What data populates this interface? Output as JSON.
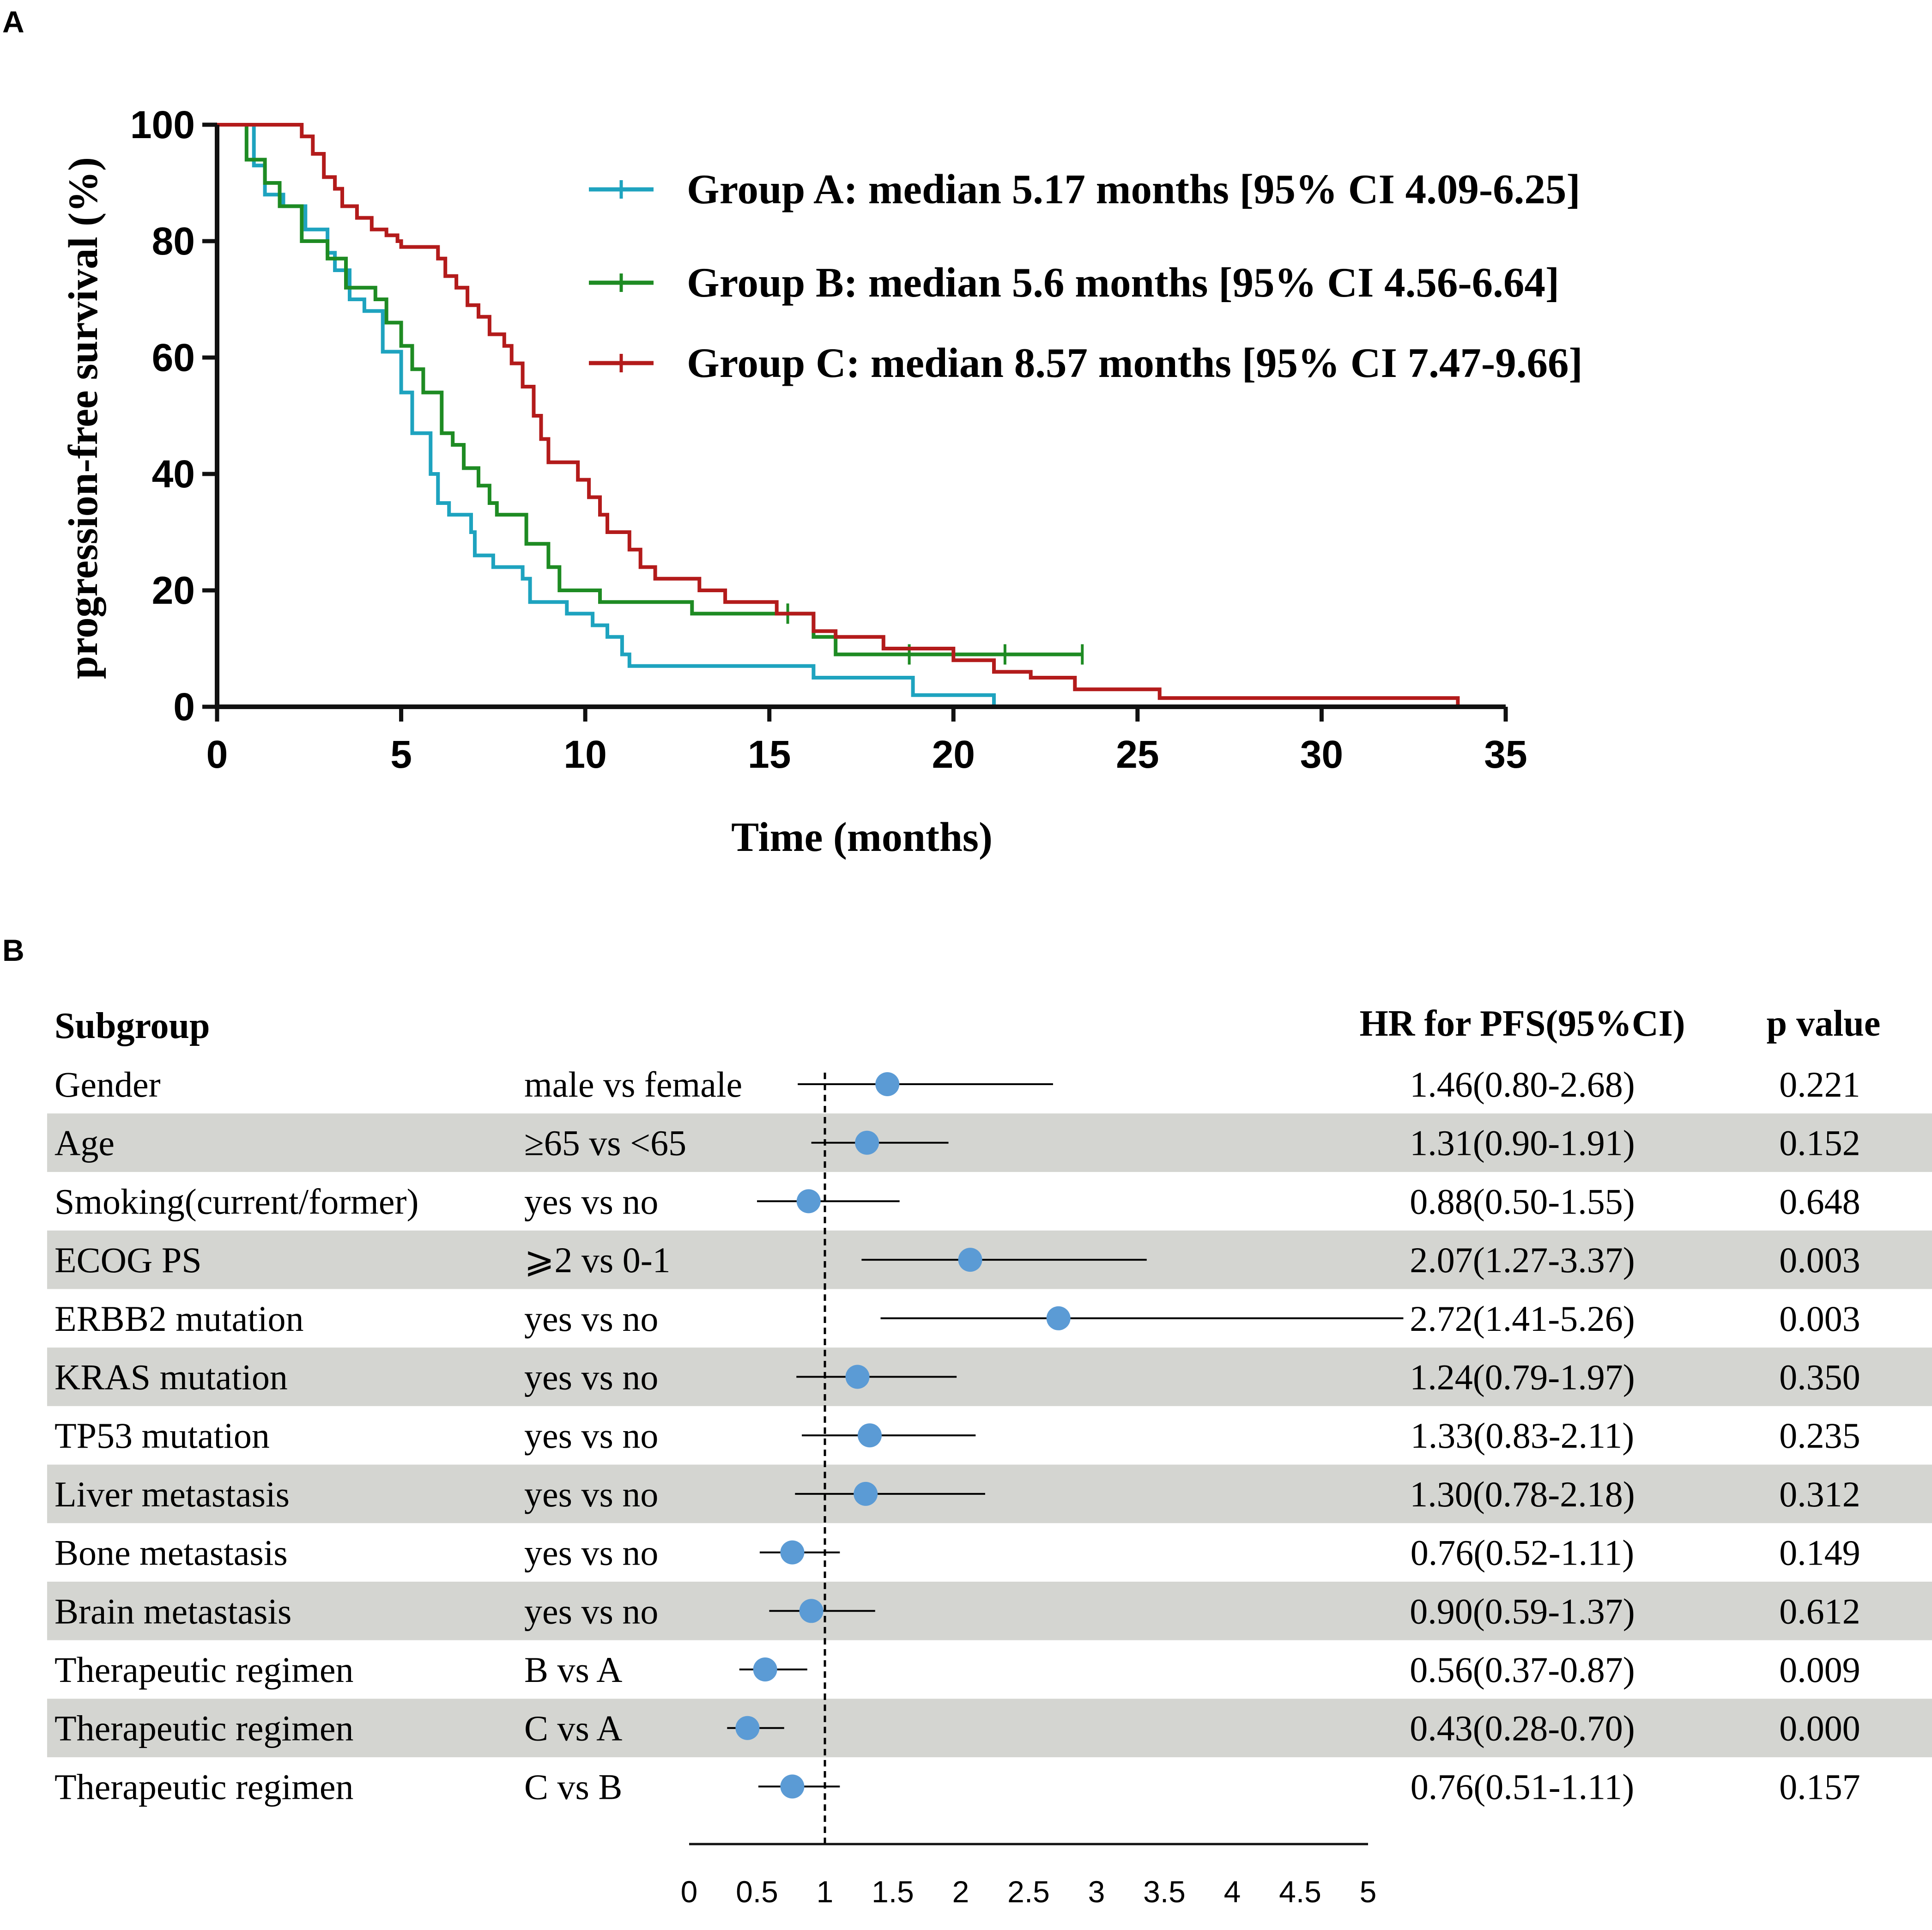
{
  "colors": {
    "group_a": "#1ea3bf",
    "group_b": "#1e8b23",
    "group_c": "#b31b1b",
    "axis": "#111111",
    "marker": "#5b9bd5",
    "row_shade": "#d4d5d1",
    "background": "#ffffff"
  },
  "panel_a": {
    "label": "A",
    "ylabel": "progression-free survival (%)",
    "xlabel": "Time (months)",
    "x_ticks": [
      "0",
      "5",
      "10",
      "15",
      "20",
      "25",
      "30",
      "35"
    ],
    "y_ticks": [
      "0",
      "20",
      "40",
      "60",
      "80",
      "100"
    ],
    "legend": [
      {
        "text": "Group A: median 5.17 months [95% CI 4.09-6.25]"
      },
      {
        "text": "Group B: median 5.6 months [95% CI 4.56-6.64]"
      },
      {
        "text": "Group C: median 8.57 months [95% CI 7.47-9.66]"
      }
    ]
  },
  "panel_b": {
    "label": "B",
    "headers": {
      "subgroup": "Subgroup",
      "hr": "HR for PFS(95%CI)",
      "p": "p value"
    },
    "x_ticks": [
      "0",
      "0.5",
      "1",
      "1.5",
      "2",
      "2.5",
      "3",
      "3.5",
      "4",
      "4.5",
      "5"
    ],
    "rows": [
      {
        "subgroup": "Gender",
        "comparison": "male vs female",
        "hr_text": "1.46(0.80-2.68)",
        "p": "0.221"
      },
      {
        "subgroup": "Age",
        "comparison": "≥65 vs <65",
        "hr_text": "1.31(0.90-1.91)",
        "p": "0.152"
      },
      {
        "subgroup": "Smoking(current/former)",
        "comparison": "yes vs no",
        "hr_text": "0.88(0.50-1.55)",
        "p": "0.648"
      },
      {
        "subgroup": "ECOG PS",
        "comparison": "⩾2 vs 0-1",
        "hr_text": "2.07(1.27-3.37)",
        "p": "0.003"
      },
      {
        "subgroup": "ERBB2 mutation",
        "comparison": "yes vs no",
        "hr_text": "2.72(1.41-5.26)",
        "p": "0.003"
      },
      {
        "subgroup": "KRAS mutation",
        "comparison": "yes vs no",
        "hr_text": "1.24(0.79-1.97)",
        "p": "0.350"
      },
      {
        "subgroup": "TP53 mutation",
        "comparison": "yes vs no",
        "hr_text": "1.33(0.83-2.11)",
        "p": "0.235"
      },
      {
        "subgroup": "Liver metastasis",
        "comparison": "yes vs no",
        "hr_text": "1.30(0.78-2.18)",
        "p": "0.312"
      },
      {
        "subgroup": "Bone metastasis",
        "comparison": "yes vs no",
        "hr_text": "0.76(0.52-1.11)",
        "p": "0.149"
      },
      {
        "subgroup": "Brain metastasis",
        "comparison": "yes vs no",
        "hr_text": "0.90(0.59-1.37)",
        "p": "0.612"
      },
      {
        "subgroup": "Therapeutic regimen",
        "comparison": "B vs A",
        "hr_text": "0.56(0.37-0.87)",
        "p": "0.009"
      },
      {
        "subgroup": "Therapeutic regimen",
        "comparison": "C vs A",
        "hr_text": "0.43(0.28-0.70)",
        "p": "0.000"
      },
      {
        "subgroup": "Therapeutic regimen",
        "comparison": "C vs B",
        "hr_text": "0.76(0.51-1.11)",
        "p": "0.157"
      }
    ]
  },
  "chart_data": [
    {
      "type": "line",
      "title": "",
      "xlabel": "Time (months)",
      "ylabel": "progression-free survival (%)",
      "xlim": [
        0,
        35
      ],
      "ylim": [
        0,
        100
      ],
      "step": true,
      "series": [
        {
          "name": "Group A",
          "points": [
            [
              0,
              100
            ],
            [
              1,
              100
            ],
            [
              1,
              93
            ],
            [
              1.3,
              93
            ],
            [
              1.3,
              88
            ],
            [
              1.8,
              88
            ],
            [
              1.8,
              86
            ],
            [
              2.4,
              86
            ],
            [
              2.4,
              82
            ],
            [
              3,
              82
            ],
            [
              3,
              78
            ],
            [
              3.2,
              78
            ],
            [
              3.2,
              75
            ],
            [
              3.6,
              75
            ],
            [
              3.6,
              70
            ],
            [
              4,
              70
            ],
            [
              4,
              68
            ],
            [
              4.5,
              68
            ],
            [
              4.5,
              61
            ],
            [
              5,
              61
            ],
            [
              5,
              54
            ],
            [
              5.3,
              54
            ],
            [
              5.3,
              47
            ],
            [
              5.8,
              47
            ],
            [
              5.8,
              40
            ],
            [
              6,
              40
            ],
            [
              6,
              35
            ],
            [
              6.3,
              35
            ],
            [
              6.3,
              33
            ],
            [
              6.9,
              33
            ],
            [
              6.9,
              30
            ],
            [
              7,
              30
            ],
            [
              7,
              26
            ],
            [
              7.5,
              26
            ],
            [
              7.5,
              24
            ],
            [
              8.3,
              24
            ],
            [
              8.3,
              22
            ],
            [
              8.5,
              22
            ],
            [
              8.5,
              18
            ],
            [
              9.5,
              18
            ],
            [
              9.5,
              16
            ],
            [
              10.2,
              16
            ],
            [
              10.2,
              14
            ],
            [
              10.6,
              14
            ],
            [
              10.6,
              12
            ],
            [
              11,
              12
            ],
            [
              11,
              9
            ],
            [
              11.2,
              9
            ],
            [
              11.2,
              7
            ],
            [
              16.2,
              7
            ],
            [
              16.2,
              5
            ],
            [
              18.9,
              5
            ],
            [
              18.9,
              2
            ],
            [
              21.1,
              2
            ],
            [
              21.1,
              0
            ]
          ],
          "censored": []
        },
        {
          "name": "Group B",
          "points": [
            [
              0,
              100
            ],
            [
              0.8,
              100
            ],
            [
              0.8,
              94
            ],
            [
              1.3,
              94
            ],
            [
              1.3,
              90
            ],
            [
              1.7,
              90
            ],
            [
              1.7,
              86
            ],
            [
              2.3,
              86
            ],
            [
              2.3,
              80
            ],
            [
              3,
              80
            ],
            [
              3,
              77
            ],
            [
              3.5,
              77
            ],
            [
              3.5,
              72
            ],
            [
              4.3,
              72
            ],
            [
              4.3,
              70
            ],
            [
              4.6,
              70
            ],
            [
              4.6,
              66
            ],
            [
              5,
              66
            ],
            [
              5,
              62
            ],
            [
              5.3,
              62
            ],
            [
              5.3,
              58
            ],
            [
              5.6,
              58
            ],
            [
              5.6,
              54
            ],
            [
              6.1,
              54
            ],
            [
              6.1,
              47
            ],
            [
              6.4,
              47
            ],
            [
              6.4,
              45
            ],
            [
              6.7,
              45
            ],
            [
              6.7,
              41
            ],
            [
              7.1,
              41
            ],
            [
              7.1,
              38
            ],
            [
              7.4,
              38
            ],
            [
              7.4,
              35
            ],
            [
              7.6,
              35
            ],
            [
              7.6,
              33
            ],
            [
              8.4,
              33
            ],
            [
              8.4,
              28
            ],
            [
              9,
              28
            ],
            [
              9,
              24
            ],
            [
              9.3,
              24
            ],
            [
              9.3,
              20
            ],
            [
              10.4,
              20
            ],
            [
              10.4,
              18
            ],
            [
              12.9,
              18
            ],
            [
              12.9,
              16
            ],
            [
              16.2,
              16
            ],
            [
              16.2,
              12
            ],
            [
              16.8,
              12
            ],
            [
              16.8,
              9
            ],
            [
              23.5,
              9
            ]
          ],
          "censored": [
            [
              15.5,
              16
            ],
            [
              18.8,
              9
            ],
            [
              21.4,
              9
            ],
            [
              23.5,
              9
            ]
          ]
        },
        {
          "name": "Group C",
          "points": [
            [
              0,
              100
            ],
            [
              2.3,
              100
            ],
            [
              2.3,
              98
            ],
            [
              2.6,
              98
            ],
            [
              2.6,
              95
            ],
            [
              2.9,
              95
            ],
            [
              2.9,
              91
            ],
            [
              3.2,
              91
            ],
            [
              3.2,
              89
            ],
            [
              3.4,
              89
            ],
            [
              3.4,
              86
            ],
            [
              3.8,
              86
            ],
            [
              3.8,
              84
            ],
            [
              4.2,
              84
            ],
            [
              4.2,
              82
            ],
            [
              4.6,
              82
            ],
            [
              4.6,
              81
            ],
            [
              4.9,
              81
            ],
            [
              4.9,
              80
            ],
            [
              5,
              80
            ],
            [
              5,
              79
            ],
            [
              6,
              79
            ],
            [
              6,
              77
            ],
            [
              6.2,
              77
            ],
            [
              6.2,
              74
            ],
            [
              6.5,
              74
            ],
            [
              6.5,
              72
            ],
            [
              6.8,
              72
            ],
            [
              6.8,
              69
            ],
            [
              7.1,
              69
            ],
            [
              7.1,
              67
            ],
            [
              7.4,
              67
            ],
            [
              7.4,
              64
            ],
            [
              7.8,
              64
            ],
            [
              7.8,
              62
            ],
            [
              8,
              62
            ],
            [
              8,
              59
            ],
            [
              8.3,
              59
            ],
            [
              8.3,
              55
            ],
            [
              8.6,
              55
            ],
            [
              8.6,
              50
            ],
            [
              8.8,
              50
            ],
            [
              8.8,
              46
            ],
            [
              9,
              46
            ],
            [
              9,
              42
            ],
            [
              9.8,
              42
            ],
            [
              9.8,
              39
            ],
            [
              10.1,
              39
            ],
            [
              10.1,
              36
            ],
            [
              10.4,
              36
            ],
            [
              10.4,
              33
            ],
            [
              10.6,
              33
            ],
            [
              10.6,
              30
            ],
            [
              11.2,
              30
            ],
            [
              11.2,
              27
            ],
            [
              11.5,
              27
            ],
            [
              11.5,
              24
            ],
            [
              11.9,
              24
            ],
            [
              11.9,
              22
            ],
            [
              13.1,
              22
            ],
            [
              13.1,
              20
            ],
            [
              13.8,
              20
            ],
            [
              13.8,
              18
            ],
            [
              15.2,
              18
            ],
            [
              15.2,
              16
            ],
            [
              16.2,
              16
            ],
            [
              16.2,
              13
            ],
            [
              16.8,
              13
            ],
            [
              16.8,
              12
            ],
            [
              18.1,
              12
            ],
            [
              18.1,
              10
            ],
            [
              20,
              10
            ],
            [
              20,
              8
            ],
            [
              21.1,
              8
            ],
            [
              21.1,
              6
            ],
            [
              22.1,
              6
            ],
            [
              22.1,
              5
            ],
            [
              23.3,
              5
            ],
            [
              23.3,
              3
            ],
            [
              25.6,
              3
            ],
            [
              25.6,
              1.5
            ],
            [
              33.7,
              1.5
            ],
            [
              33.7,
              0
            ]
          ],
          "censored": []
        }
      ]
    },
    {
      "type": "forest",
      "title": "",
      "xlabel": "",
      "ylabel": "",
      "xlim": [
        0,
        5
      ],
      "reference_line": 1,
      "categories": [
        "Gender",
        "Age",
        "Smoking(current/former)",
        "ECOG PS",
        "ERBB2 mutation",
        "KRAS mutation",
        "TP53 mutation",
        "Liver metastasis",
        "Bone metastasis",
        "Brain metastasis",
        "Therapeutic regimen B vs A",
        "Therapeutic regimen C vs A",
        "Therapeutic regimen C vs B"
      ],
      "hr": [
        1.46,
        1.31,
        0.88,
        2.07,
        2.72,
        1.24,
        1.33,
        1.3,
        0.76,
        0.9,
        0.56,
        0.43,
        0.76
      ],
      "lower": [
        0.8,
        0.9,
        0.5,
        1.27,
        1.41,
        0.79,
        0.83,
        0.78,
        0.52,
        0.59,
        0.37,
        0.28,
        0.51
      ],
      "upper": [
        2.68,
        1.91,
        1.55,
        3.37,
        5.26,
        1.97,
        2.11,
        2.18,
        1.11,
        1.37,
        0.87,
        0.7,
        1.11
      ],
      "p_values": [
        "0.221",
        "0.152",
        "0.648",
        "0.003",
        "0.003",
        "0.350",
        "0.235",
        "0.312",
        "0.149",
        "0.612",
        "0.009",
        "0.000",
        "0.157"
      ]
    }
  ]
}
